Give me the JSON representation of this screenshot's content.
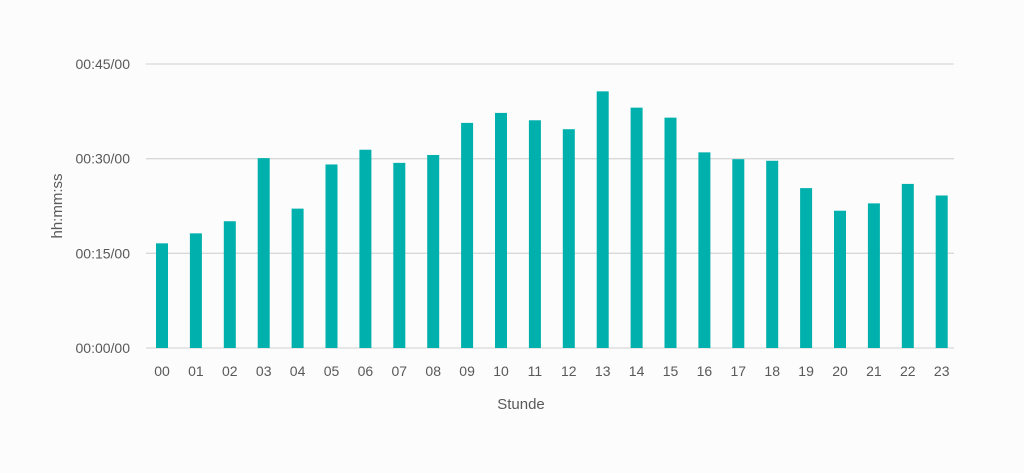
{
  "chart_data": {
    "type": "bar",
    "xlabel": "Stunde",
    "ylabel": "hh:mm:ss",
    "categories": [
      "00",
      "01",
      "02",
      "03",
      "04",
      "05",
      "06",
      "07",
      "08",
      "09",
      "10",
      "11",
      "12",
      "13",
      "14",
      "15",
      "16",
      "17",
      "18",
      "19",
      "20",
      "21",
      "22",
      "23"
    ],
    "values_seconds": [
      995,
      1090,
      1205,
      1805,
      1325,
      1745,
      1885,
      1760,
      1835,
      2140,
      2235,
      2165,
      2080,
      2440,
      2285,
      2190,
      1860,
      1795,
      1780,
      1520,
      1305,
      1375,
      1560,
      1450
    ],
    "ylim_seconds": [
      0,
      2700
    ],
    "yticks": [
      {
        "value_seconds": 0,
        "label": "00:00/00"
      },
      {
        "value_seconds": 900,
        "label": "00:15/00"
      },
      {
        "value_seconds": 1800,
        "label": "00:30/00"
      },
      {
        "value_seconds": 2700,
        "label": "00:45/00"
      }
    ],
    "grid": true,
    "legend": "none",
    "bar_color": "#00b0ad",
    "grid_color": "#d9d9d9",
    "text_color": "#595959"
  }
}
